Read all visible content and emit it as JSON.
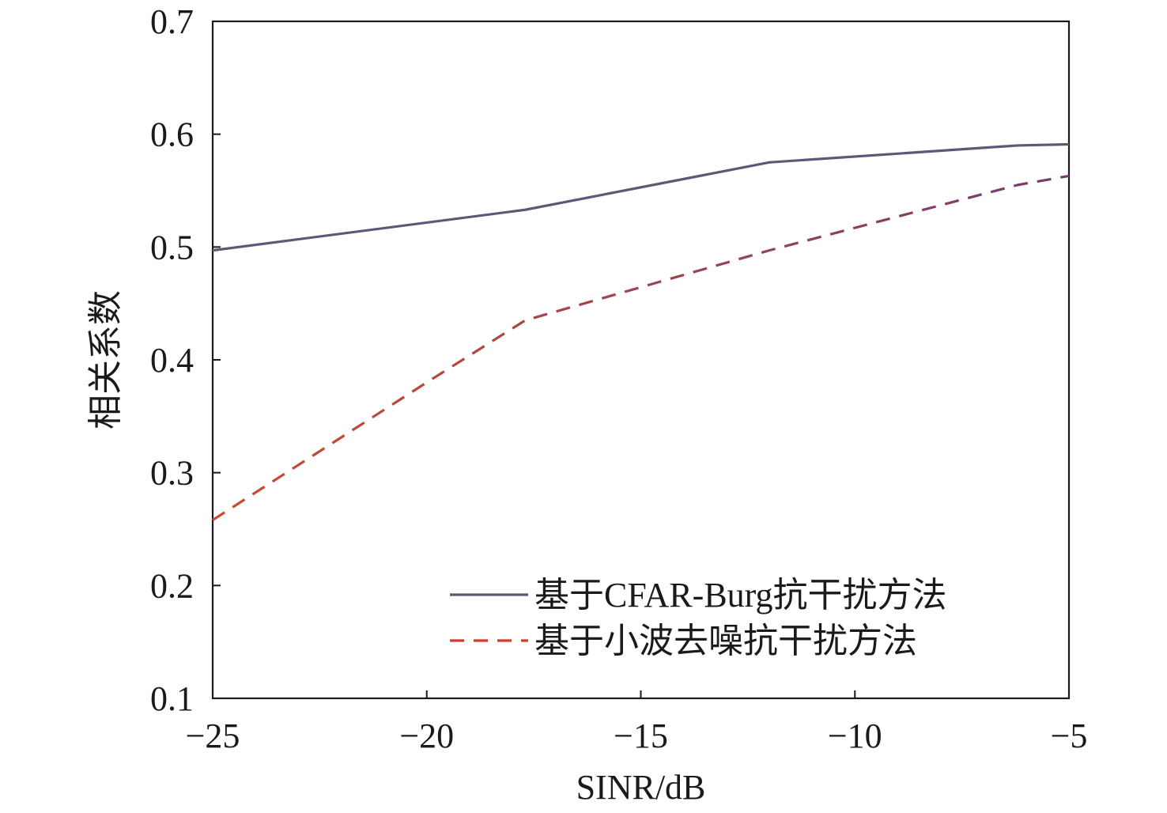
{
  "chart_data": {
    "type": "line",
    "title": "",
    "xlabel": "SINR/dB",
    "ylabel": "相关系数",
    "xlim": [
      -25,
      -5
    ],
    "ylim": [
      0.1,
      0.7
    ],
    "x_ticks": [
      -25,
      -20,
      -15,
      -10,
      -5
    ],
    "x_tick_labels": [
      "−25",
      "−20",
      "−15",
      "−10",
      "−5"
    ],
    "y_ticks": [
      0.1,
      0.2,
      0.3,
      0.4,
      0.5,
      0.6,
      0.7
    ],
    "y_tick_labels": [
      "0.1",
      "0.2",
      "0.3",
      "0.4",
      "0.5",
      "0.6",
      "0.7"
    ],
    "grid": false,
    "legend_position": "bottom-right",
    "series": [
      {
        "name": "基于CFAR-Burg抗干扰方法",
        "style": "solid",
        "color": "#5a5a78",
        "x": [
          -25,
          -17.7,
          -12,
          -6.2,
          -5
        ],
        "y": [
          0.497,
          0.533,
          0.575,
          0.59,
          0.591
        ]
      },
      {
        "name": "基于小波去噪抗干扰方法",
        "style": "dashed",
        "color": "#d23a2a",
        "color2": "#6a3a78",
        "x": [
          -25,
          -20,
          -17.7,
          -12,
          -6.2,
          -5
        ],
        "y": [
          0.258,
          0.38,
          0.435,
          0.497,
          0.555,
          0.563
        ]
      }
    ]
  }
}
